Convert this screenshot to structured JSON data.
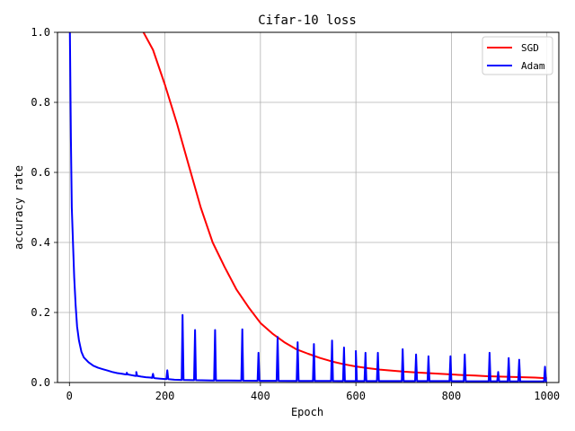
{
  "chart_data": {
    "type": "line",
    "title": "Cifar-10 loss",
    "xlabel": "Epoch",
    "ylabel": "accuracy rate",
    "xlim": [
      -25,
      1025
    ],
    "ylim": [
      0,
      1.0
    ],
    "xticks": [
      0,
      200,
      400,
      600,
      800,
      1000
    ],
    "yticks": [
      0.0,
      0.2,
      0.4,
      0.6,
      0.8,
      1.0
    ],
    "grid": true,
    "legend_position": "top-right",
    "series": [
      {
        "name": "SGD",
        "color": "#ff0000",
        "points": [
          [
            155,
            1.0
          ],
          [
            175,
            0.95
          ],
          [
            200,
            0.85
          ],
          [
            225,
            0.74
          ],
          [
            250,
            0.62
          ],
          [
            275,
            0.5
          ],
          [
            300,
            0.4
          ],
          [
            325,
            0.33
          ],
          [
            350,
            0.265
          ],
          [
            375,
            0.215
          ],
          [
            400,
            0.17
          ],
          [
            425,
            0.14
          ],
          [
            450,
            0.115
          ],
          [
            475,
            0.095
          ],
          [
            500,
            0.082
          ],
          [
            525,
            0.07
          ],
          [
            550,
            0.06
          ],
          [
            575,
            0.052
          ],
          [
            600,
            0.046
          ],
          [
            625,
            0.041
          ],
          [
            650,
            0.037
          ],
          [
            675,
            0.034
          ],
          [
            700,
            0.031
          ],
          [
            725,
            0.029
          ],
          [
            750,
            0.027
          ],
          [
            775,
            0.025
          ],
          [
            800,
            0.023
          ],
          [
            825,
            0.021
          ],
          [
            850,
            0.02
          ],
          [
            875,
            0.018
          ],
          [
            900,
            0.017
          ],
          [
            925,
            0.016
          ],
          [
            950,
            0.015
          ],
          [
            975,
            0.014
          ],
          [
            1000,
            0.012
          ]
        ]
      },
      {
        "name": "Adam",
        "color": "#0000ff",
        "points": [
          [
            1,
            1.0
          ],
          [
            3,
            0.7
          ],
          [
            5,
            0.5
          ],
          [
            8,
            0.38
          ],
          [
            10,
            0.3
          ],
          [
            13,
            0.22
          ],
          [
            16,
            0.16
          ],
          [
            20,
            0.12
          ],
          [
            25,
            0.088
          ],
          [
            30,
            0.072
          ],
          [
            40,
            0.058
          ],
          [
            50,
            0.048
          ],
          [
            60,
            0.042
          ],
          [
            70,
            0.038
          ],
          [
            80,
            0.034
          ],
          [
            90,
            0.03
          ],
          [
            100,
            0.027
          ],
          [
            110,
            0.025
          ],
          [
            120,
            0.023
          ],
          [
            130,
            0.021
          ],
          [
            140,
            0.019
          ],
          [
            150,
            0.017
          ],
          [
            160,
            0.015
          ],
          [
            170,
            0.014
          ],
          [
            180,
            0.012
          ],
          [
            190,
            0.011
          ],
          [
            200,
            0.01
          ],
          [
            220,
            0.008
          ],
          [
            250,
            0.007
          ],
          [
            300,
            0.006
          ],
          [
            400,
            0.005
          ],
          [
            600,
            0.004
          ],
          [
            800,
            0.004
          ],
          [
            1000,
            0.003
          ]
        ],
        "spikes": [
          [
            120,
            0.028
          ],
          [
            140,
            0.03
          ],
          [
            175,
            0.025
          ],
          [
            205,
            0.035
          ],
          [
            237,
            0.193
          ],
          [
            263,
            0.15
          ],
          [
            305,
            0.15
          ],
          [
            362,
            0.152
          ],
          [
            396,
            0.085
          ],
          [
            436,
            0.13
          ],
          [
            478,
            0.115
          ],
          [
            512,
            0.11
          ],
          [
            550,
            0.12
          ],
          [
            575,
            0.1
          ],
          [
            600,
            0.09
          ],
          [
            620,
            0.085
          ],
          [
            646,
            0.085
          ],
          [
            698,
            0.095
          ],
          [
            726,
            0.08
          ],
          [
            752,
            0.075
          ],
          [
            798,
            0.075
          ],
          [
            828,
            0.08
          ],
          [
            880,
            0.085
          ],
          [
            898,
            0.03
          ],
          [
            920,
            0.07
          ],
          [
            942,
            0.065
          ],
          [
            996,
            0.045
          ]
        ]
      }
    ]
  }
}
